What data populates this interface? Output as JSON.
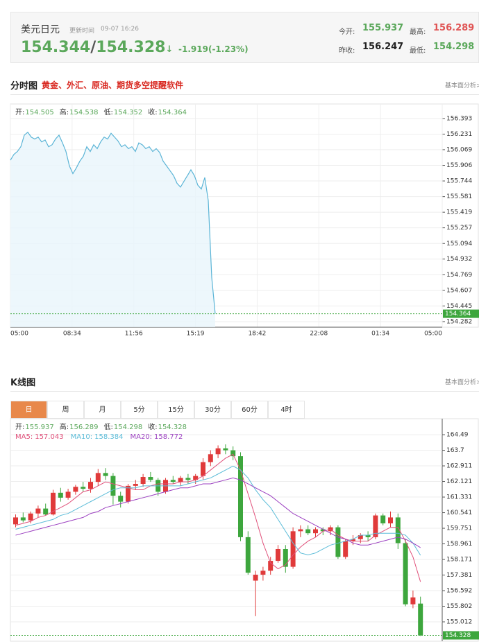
{
  "header": {
    "name": "美元日元",
    "update_label": "更新时间",
    "update_time": "09-07 16:26",
    "bid": "154.344",
    "sep": "/",
    "ask": "154.328",
    "arrow": "↓",
    "change": "-1.919(-1.23%)",
    "stats": [
      {
        "label": "今开:",
        "value": "155.937"
      },
      {
        "label": "最高:",
        "value": "156.289"
      },
      {
        "label": "昨收:",
        "value": "156.247"
      },
      {
        "label": "最低:",
        "value": "154.298"
      }
    ]
  },
  "intraday": {
    "title": "分时图",
    "promo": "黄金、外汇、原油、期货多空提醒软件",
    "link": "基本面分析>"
  },
  "kline": {
    "title": "K线图",
    "link": "基本面分析>",
    "tabs": [
      "日",
      "周",
      "月",
      "5分",
      "15分",
      "30分",
      "60分",
      "4时"
    ]
  },
  "chart_data": [
    {
      "type": "line",
      "color": "#5ab4d6",
      "info": [
        {
          "label": "开:",
          "value": 154.505
        },
        {
          "label": "高:",
          "value": 154.538
        },
        {
          "label": "低:",
          "value": 154.352
        },
        {
          "label": "收:",
          "value": 154.364
        }
      ],
      "x_labels": [
        "05:00",
        "08:34",
        "11:56",
        "15:19",
        "18:42",
        "22:08",
        "01:34",
        "05:00"
      ],
      "values": [
        155.96,
        156.02,
        156.05,
        156.1,
        156.22,
        156.25,
        156.2,
        156.18,
        156.2,
        156.15,
        156.17,
        156.1,
        156.12,
        156.18,
        156.22,
        156.14,
        156.05,
        155.9,
        155.82,
        155.88,
        155.95,
        156.0,
        156.1,
        156.05,
        156.12,
        156.08,
        156.15,
        156.2,
        156.18,
        156.24,
        156.2,
        156.16,
        156.1,
        156.12,
        156.08,
        156.1,
        156.05,
        156.14,
        156.12,
        156.08,
        156.1,
        156.05,
        156.08,
        156.04,
        155.95,
        155.9,
        155.85,
        155.8,
        155.72,
        155.68,
        155.74,
        155.8,
        155.86,
        155.8,
        155.7,
        155.66,
        155.78,
        155.54,
        154.74,
        154.364
      ],
      "ylim": [
        154.224,
        156.544
      ],
      "yticks": [
        156.393,
        156.231,
        156.069,
        155.906,
        155.744,
        155.581,
        155.419,
        155.257,
        155.094,
        154.932,
        154.769,
        154.607,
        154.445,
        154.282
      ],
      "last_price": 154.364,
      "grid": true
    },
    {
      "type": "candlestick",
      "up_color": "#e03a3a",
      "down_color": "#3da63d",
      "info": [
        {
          "label": "开:",
          "value": 155.937
        },
        {
          "label": "高:",
          "value": 156.289
        },
        {
          "label": "低:",
          "value": 154.298
        },
        {
          "label": "收:",
          "value": 154.328
        }
      ],
      "open": [
        159.95,
        160.3,
        160.15,
        160.5,
        160.75,
        160.45,
        161.55,
        161.3,
        161.6,
        161.85,
        161.75,
        162.1,
        162.55,
        162.4,
        161.4,
        161.1,
        161.9,
        162.0,
        162.35,
        162.2,
        161.6,
        162.2,
        162.1,
        162.3,
        162.2,
        162.4,
        163.1,
        163.5,
        163.8,
        163.7,
        163.4,
        159.3,
        157.1,
        157.4,
        157.6,
        158.1,
        158.7,
        157.8,
        159.6,
        159.7,
        159.5,
        159.7,
        159.6,
        159.8,
        158.3,
        159.1,
        159.2,
        159.4,
        159.3,
        160.4,
        160.0,
        160.3,
        159.0,
        155.9,
        155.937
      ],
      "high": [
        160.45,
        160.55,
        160.6,
        160.9,
        161.0,
        161.7,
        161.8,
        161.75,
        161.95,
        162.1,
        162.3,
        162.75,
        162.8,
        162.55,
        161.6,
        162.0,
        162.2,
        162.5,
        162.6,
        162.3,
        162.3,
        162.4,
        162.4,
        162.5,
        162.5,
        163.3,
        163.7,
        163.95,
        164.0,
        163.9,
        163.6,
        159.6,
        157.6,
        157.8,
        158.3,
        158.9,
        158.9,
        159.8,
        159.9,
        159.9,
        159.8,
        159.8,
        159.9,
        159.9,
        159.2,
        159.4,
        159.5,
        159.6,
        160.5,
        160.5,
        160.6,
        160.5,
        159.2,
        156.6,
        156.289
      ],
      "low": [
        159.8,
        160.05,
        160.0,
        160.3,
        160.4,
        160.4,
        161.1,
        161.2,
        161.45,
        161.6,
        161.55,
        161.9,
        162.2,
        160.95,
        160.8,
        161.0,
        161.7,
        161.85,
        162.1,
        161.4,
        161.5,
        162.0,
        161.9,
        162.0,
        162.0,
        162.2,
        162.9,
        163.3,
        163.5,
        163.2,
        159.1,
        157.4,
        155.3,
        157.1,
        157.4,
        158.0,
        157.5,
        157.7,
        159.3,
        159.4,
        159.3,
        159.4,
        159.4,
        158.2,
        158.2,
        158.9,
        159.0,
        159.1,
        159.2,
        159.9,
        159.8,
        158.7,
        155.8,
        155.7,
        154.298
      ],
      "close": [
        160.3,
        160.15,
        160.5,
        160.75,
        160.45,
        161.55,
        161.3,
        161.6,
        161.85,
        161.75,
        162.1,
        162.55,
        162.4,
        161.4,
        161.1,
        161.9,
        162.0,
        162.35,
        162.2,
        161.6,
        162.2,
        162.1,
        162.3,
        162.2,
        162.4,
        163.1,
        163.5,
        163.8,
        163.7,
        163.4,
        159.3,
        157.5,
        157.4,
        157.6,
        158.1,
        158.7,
        157.8,
        159.6,
        159.7,
        159.5,
        159.7,
        159.6,
        159.8,
        158.3,
        159.1,
        159.2,
        159.4,
        159.3,
        160.4,
        160.0,
        160.3,
        159.0,
        155.9,
        156.25,
        154.328
      ],
      "series": [
        {
          "name": "MA5:",
          "color": "#e0507a",
          "last": 157.043,
          "values": [
            159.9,
            160.0,
            160.1,
            160.3,
            160.4,
            160.6,
            160.8,
            161.0,
            161.3,
            161.6,
            161.7,
            161.9,
            162.1,
            162.0,
            161.9,
            161.8,
            161.7,
            161.7,
            161.9,
            162.0,
            162.0,
            162.0,
            162.1,
            162.1,
            162.2,
            162.4,
            162.7,
            163.0,
            163.3,
            163.5,
            162.7,
            161.5,
            160.3,
            159.0,
            158.0,
            157.7,
            157.9,
            158.4,
            158.8,
            159.1,
            159.3,
            159.6,
            159.7,
            159.4,
            159.2,
            159.1,
            159.1,
            159.1,
            159.4,
            159.6,
            159.8,
            159.8,
            159.1,
            158.3,
            157.043
          ]
        },
        {
          "name": "MA10:",
          "color": "#5bbcd8",
          "last": 158.384,
          "values": [
            159.7,
            159.8,
            159.9,
            160.0,
            160.1,
            160.2,
            160.4,
            160.5,
            160.7,
            160.9,
            161.1,
            161.3,
            161.5,
            161.7,
            161.8,
            161.8,
            161.8,
            161.9,
            161.9,
            161.9,
            161.9,
            161.9,
            161.9,
            162.0,
            162.1,
            162.2,
            162.3,
            162.5,
            162.7,
            162.9,
            162.7,
            162.3,
            161.7,
            161.2,
            160.8,
            160.2,
            159.6,
            159.0,
            158.5,
            158.4,
            158.5,
            158.7,
            158.9,
            159.0,
            159.1,
            159.2,
            159.4,
            159.4,
            159.5,
            159.5,
            159.5,
            159.5,
            159.4,
            159.0,
            158.384
          ]
        },
        {
          "name": "MA20:",
          "color": "#9b3fc0",
          "last": 158.772,
          "values": [
            159.4,
            159.5,
            159.6,
            159.7,
            159.8,
            159.9,
            160.0,
            160.1,
            160.2,
            160.3,
            160.5,
            160.6,
            160.8,
            160.9,
            161.0,
            161.1,
            161.2,
            161.3,
            161.4,
            161.5,
            161.6,
            161.7,
            161.8,
            161.8,
            161.9,
            162.0,
            162.0,
            162.1,
            162.2,
            162.3,
            162.2,
            162.0,
            161.8,
            161.6,
            161.4,
            161.1,
            160.8,
            160.5,
            160.3,
            160.1,
            159.9,
            159.7,
            159.5,
            159.3,
            159.2,
            159.0,
            158.9,
            158.9,
            159.0,
            159.1,
            159.2,
            159.3,
            159.2,
            159.0,
            158.772
          ]
        }
      ],
      "ylim": [
        154.03,
        165.3
      ],
      "yticks": [
        164.49,
        163.7,
        162.911,
        162.121,
        161.331,
        160.541,
        159.751,
        158.961,
        158.171,
        157.381,
        156.592,
        155.802,
        155.012
      ],
      "last_price": 154.328,
      "grid": true
    }
  ]
}
